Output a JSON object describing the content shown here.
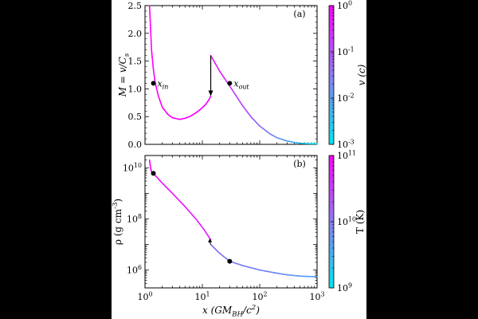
{
  "chart_data": [
    {
      "panel_label": "(a)",
      "type": "line",
      "ylabel": "M = v/C_s",
      "x_scale": "log",
      "xlim": [
        1,
        1000
      ],
      "ylim": [
        0,
        2.5
      ],
      "yticks": [
        "0.0",
        "0.5",
        "1.0",
        "1.5",
        "2.0",
        "2.5"
      ],
      "colorbar": {
        "label": "v (c)",
        "scale": "log",
        "ticks": [
          "10^-3",
          "10^-2",
          "10^-1",
          "10^0"
        ],
        "colors": [
          "#00e5ee",
          "#ff00ff"
        ]
      },
      "series": [
        {
          "x": [
            1.2,
            1.3,
            1.4,
            1.5,
            1.7,
            2.0,
            2.5,
            3.0,
            4.0,
            5.0,
            6.0,
            7.0,
            8.0,
            9.0,
            10.0,
            11.0,
            12.0,
            13.0,
            14.0
          ],
          "y": [
            2.5,
            1.7,
            1.35,
            1.12,
            0.88,
            0.67,
            0.54,
            0.48,
            0.45,
            0.47,
            0.5,
            0.54,
            0.58,
            0.62,
            0.66,
            0.7,
            0.75,
            0.8,
            0.87
          ]
        },
        {
          "x": [
            14.0,
            20.0,
            30.0,
            50.0,
            70.0,
            100.0,
            150.0,
            200.0,
            300.0,
            400.0,
            500.0,
            700.0,
            1000.0
          ],
          "y": [
            1.6,
            1.32,
            1.05,
            0.7,
            0.5,
            0.33,
            0.19,
            0.12,
            0.06,
            0.035,
            0.02,
            0.012,
            0.01
          ]
        }
      ],
      "annotations": [
        {
          "label": "x_in",
          "x": 1.4,
          "y": 1.1
        },
        {
          "label": "x_out",
          "x": 30,
          "y": 1.1
        }
      ],
      "shock_arrow": {
        "x": 14,
        "y_from": 1.6,
        "y_to": 0.87
      }
    },
    {
      "panel_label": "(b)",
      "type": "line",
      "ylabel": "ρ (g cm^-3)",
      "xlabel": "x (GM_BH/c^2)",
      "x_scale": "log",
      "y_scale": "log",
      "xlim": [
        1,
        1000
      ],
      "ylim": [
        200000,
        30000000000
      ],
      "xticks": [
        "10^0",
        "10^1",
        "10^2",
        "10^3"
      ],
      "yticks": [
        "10^6",
        "10^8",
        "10^10"
      ],
      "colorbar": {
        "label": "T (K)",
        "scale": "log",
        "ticks": [
          "10^9",
          "10^10",
          "10^11"
        ],
        "colors": [
          "#00e5ee",
          "#ff00ff"
        ]
      },
      "series": [
        {
          "x": [
            1.2,
            1.25,
            1.3,
            1.4,
            2.0,
            3.0,
            5.0,
            8.0,
            11.0,
            14.0
          ],
          "y": [
            20000000000,
            10000000000,
            7000000000,
            6000000000,
            2500000000,
            1000000000,
            300000000,
            90000000,
            35000000,
            15000000
          ]
        },
        {
          "x": [
            14.0,
            20.0,
            30.0,
            50.0,
            100.0,
            200.0,
            300.0,
            500.0,
            700.0,
            1000.0
          ],
          "y": [
            10000000,
            4500000,
            2200000,
            1500000,
            1000000,
            750000,
            650000,
            580000,
            560000,
            550000
          ]
        }
      ],
      "markers": [
        {
          "x": 1.4,
          "y": 6000000000
        },
        {
          "x": 30,
          "y": 2200000
        }
      ],
      "shock_arrow": {
        "x": 14,
        "y_from": 10000000,
        "y_to": 15000000
      }
    }
  ]
}
